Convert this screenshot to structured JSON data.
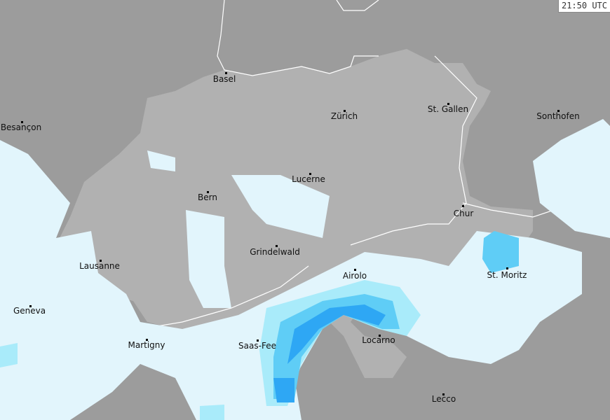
{
  "timestamp": "21:50 UTC",
  "colors": {
    "outside": "#9c9c9c",
    "switzerland": "#b1b1b1",
    "rain_light": "#e2f5fc",
    "rain_moderate": "#a9ebfa",
    "rain_medium": "#5fcdf6",
    "rain_heavy": "#2ea7f4",
    "border": "#ffffff"
  },
  "cities": [
    {
      "name": "Basel"
    },
    {
      "name": "Besançon"
    },
    {
      "name": "Zürich"
    },
    {
      "name": "St. Gallen"
    },
    {
      "name": "Sonthofen"
    },
    {
      "name": "Lucerne"
    },
    {
      "name": "Bern"
    },
    {
      "name": "Chur"
    },
    {
      "name": "Grindelwald"
    },
    {
      "name": "Lausanne"
    },
    {
      "name": "Airolo"
    },
    {
      "name": "St. Moritz"
    },
    {
      "name": "Geneva"
    },
    {
      "name": "Martigny"
    },
    {
      "name": "Saas-Fee"
    },
    {
      "name": "Locarno"
    },
    {
      "name": "Lecco"
    }
  ]
}
